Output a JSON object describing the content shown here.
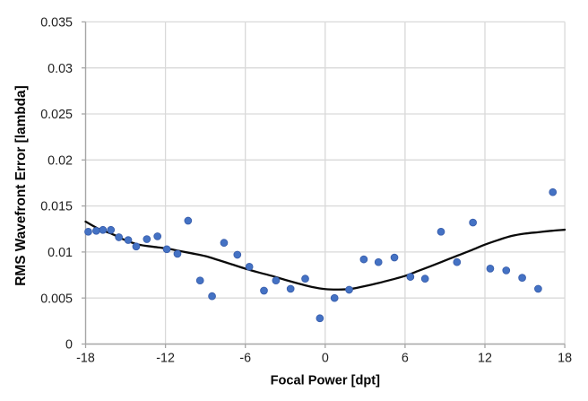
{
  "figure": {
    "background": "#ffffff",
    "kind": "scatter chart with smoothed trend line"
  },
  "chart_data": {
    "type": "scatter",
    "title": "",
    "xlabel": "Focal Power [dpt]",
    "ylabel": "RMS Wavefront Error [lambda]",
    "xlim": [
      -18,
      18
    ],
    "ylim": [
      0,
      0.035
    ],
    "x_ticks": [
      -18,
      -12,
      -6,
      0,
      6,
      12,
      18
    ],
    "x_tick_labels": [
      "-18",
      "-12",
      "-6",
      "0",
      "6",
      "12",
      "18"
    ],
    "y_ticks": [
      0,
      0.005,
      0.01,
      0.015,
      0.02,
      0.025,
      0.03,
      0.035
    ],
    "y_tick_labels": [
      "0",
      "0.005",
      "0.01",
      "0.015",
      "0.02",
      "0.025",
      "0.03",
      "0.035"
    ],
    "grid": "both",
    "legend": "none",
    "series": [
      {
        "name": "RMS wavefront error measurements",
        "kind": "scatter",
        "marker": "circle",
        "points": [
          [
            -17.8,
            0.0122
          ],
          [
            -17.2,
            0.0123
          ],
          [
            -16.7,
            0.0124
          ],
          [
            -16.1,
            0.0124
          ],
          [
            -15.5,
            0.0116
          ],
          [
            -14.8,
            0.0113
          ],
          [
            -14.2,
            0.0106
          ],
          [
            -13.4,
            0.0114
          ],
          [
            -12.6,
            0.0117
          ],
          [
            -11.9,
            0.0103
          ],
          [
            -11.1,
            0.0098
          ],
          [
            -10.3,
            0.0134
          ],
          [
            -9.4,
            0.0069
          ],
          [
            -8.5,
            0.0052
          ],
          [
            -7.6,
            0.011
          ],
          [
            -6.6,
            0.0097
          ],
          [
            -5.7,
            0.0084
          ],
          [
            -4.6,
            0.0058
          ],
          [
            -3.7,
            0.0069
          ],
          [
            -2.6,
            0.006
          ],
          [
            -1.5,
            0.0071
          ],
          [
            -0.4,
            0.0028
          ],
          [
            0.7,
            0.005
          ],
          [
            1.8,
            0.0059
          ],
          [
            2.9,
            0.0092
          ],
          [
            4.0,
            0.0089
          ],
          [
            5.2,
            0.0094
          ],
          [
            6.4,
            0.0073
          ],
          [
            7.5,
            0.0071
          ],
          [
            8.7,
            0.0122
          ],
          [
            9.9,
            0.0089
          ],
          [
            11.1,
            0.0132
          ],
          [
            12.4,
            0.0082
          ],
          [
            13.6,
            0.008
          ],
          [
            14.8,
            0.0072
          ],
          [
            16.0,
            0.006
          ],
          [
            17.1,
            0.0165
          ]
        ]
      },
      {
        "name": "smoothed trend line",
        "kind": "smooth-line",
        "points": [
          [
            -18,
            0.0133
          ],
          [
            -17,
            0.0125
          ],
          [
            -16,
            0.01195
          ],
          [
            -15,
            0.01128
          ],
          [
            -14,
            0.0108
          ],
          [
            -13,
            0.01058
          ],
          [
            -12,
            0.0104
          ],
          [
            -11,
            0.01013
          ],
          [
            -10,
            0.00985
          ],
          [
            -9,
            0.00955
          ],
          [
            -8,
            0.00911
          ],
          [
            -7,
            0.00865
          ],
          [
            -6,
            0.00819
          ],
          [
            -5,
            0.00778
          ],
          [
            -4,
            0.0074
          ],
          [
            -3,
            0.00697
          ],
          [
            -2,
            0.00657
          ],
          [
            -1,
            0.0062
          ],
          [
            0,
            0.00597
          ],
          [
            1,
            0.00592
          ],
          [
            2,
            0.006
          ],
          [
            3,
            0.0063
          ],
          [
            4,
            0.00663
          ],
          [
            5,
            0.007
          ],
          [
            6,
            0.0074
          ],
          [
            7,
            0.00795
          ],
          [
            8,
            0.0085
          ],
          [
            9,
            0.00907
          ],
          [
            10,
            0.00964
          ],
          [
            11,
            0.0102
          ],
          [
            12,
            0.0108
          ],
          [
            13,
            0.0113
          ],
          [
            14,
            0.01174
          ],
          [
            15,
            0.012
          ],
          [
            16,
            0.01215
          ],
          [
            17,
            0.0123
          ],
          [
            18,
            0.01242
          ]
        ]
      }
    ],
    "colors": {
      "marker_fill": "#4472c4",
      "marker_stroke": "#3a5fad",
      "trend_line": "#0a0a0a",
      "gridline": "#d9d9d9",
      "axis_line": "#a6a6a6",
      "tick_label": "#1f1f1f",
      "axis_title": "#050505"
    }
  }
}
